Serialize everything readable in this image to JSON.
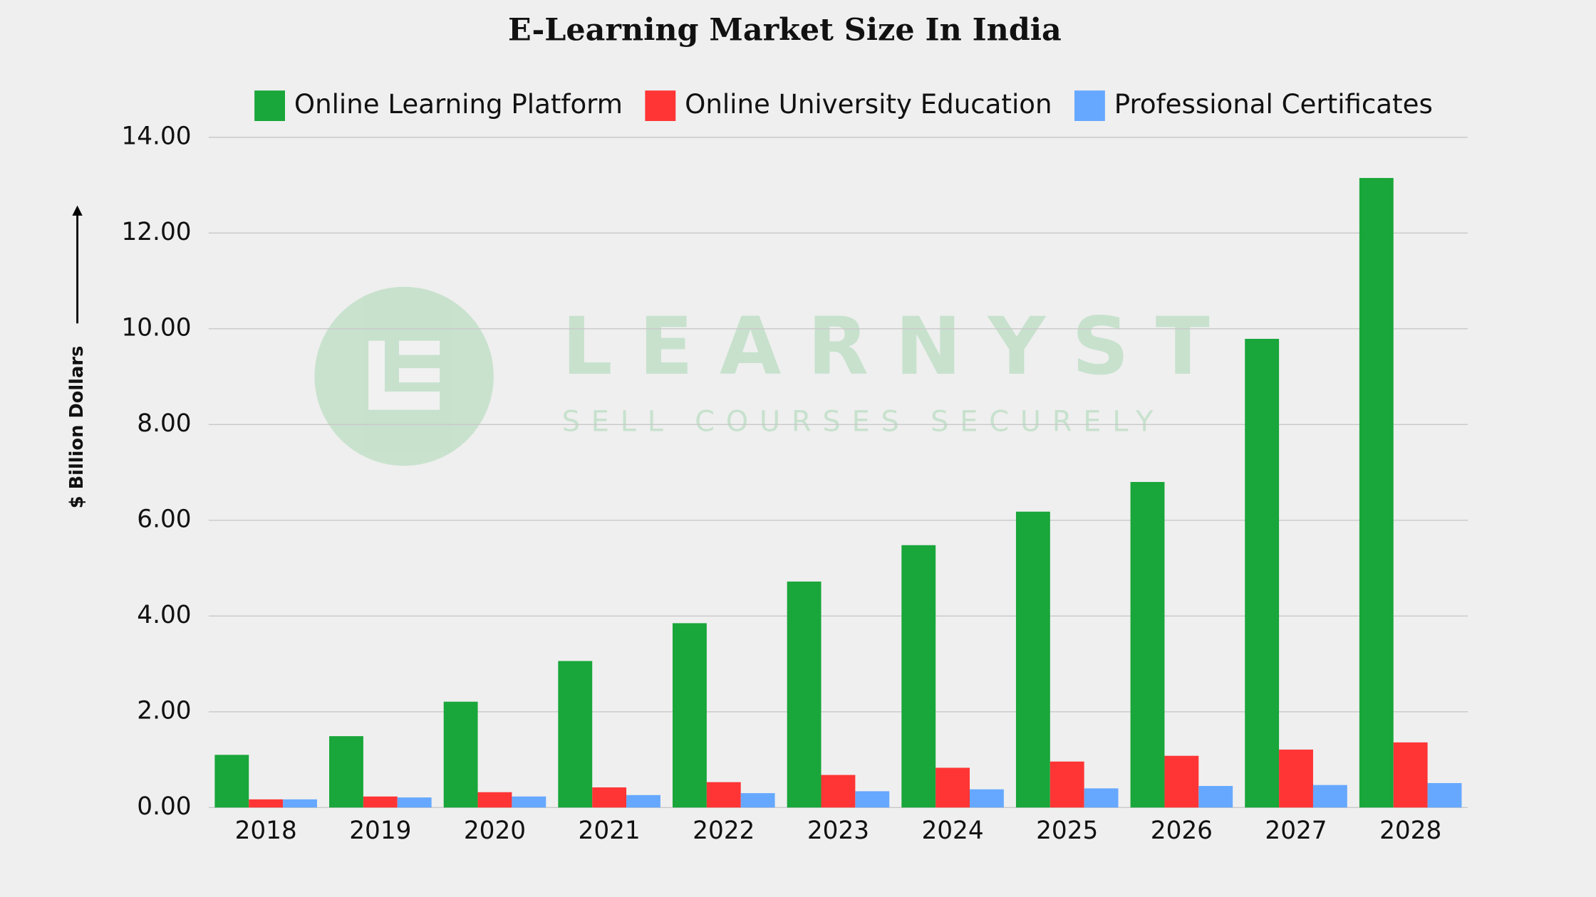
{
  "chart_data": {
    "type": "bar",
    "title": "E-Learning Market Size In India",
    "y_axis_label": "$ Billion Dollars",
    "watermark": [
      "LEARNYST",
      "SELL COURSES SECURELY"
    ],
    "categories": [
      "2018",
      "2019",
      "2020",
      "2021",
      "2022",
      "2023",
      "2024",
      "2025",
      "2026",
      "2027",
      "2028"
    ],
    "series": [
      {
        "name": "Online Learning Platform",
        "color": "#19a63a",
        "values": [
          1.1,
          1.49,
          2.21,
          3.06,
          3.85,
          4.72,
          5.48,
          6.18,
          6.8,
          9.79,
          13.15
        ]
      },
      {
        "name": "Online University Education",
        "color": "#ff3535",
        "values": [
          0.17,
          0.23,
          0.32,
          0.42,
          0.53,
          0.68,
          0.83,
          0.96,
          1.08,
          1.21,
          1.36
        ]
      },
      {
        "name": "Professional Certificates",
        "color": "#66a8ff",
        "values": [
          0.17,
          0.21,
          0.23,
          0.26,
          0.3,
          0.34,
          0.38,
          0.4,
          0.45,
          0.47,
          0.51
        ]
      }
    ],
    "ylim": [
      0,
      14
    ],
    "yticks": [
      {
        "value": 0,
        "label": "0.00"
      },
      {
        "value": 2,
        "label": "2.00"
      },
      {
        "value": 4,
        "label": "4.00"
      },
      {
        "value": 6,
        "label": "6.00"
      },
      {
        "value": 8,
        "label": "8.00"
      },
      {
        "value": 10,
        "label": "10.00"
      },
      {
        "value": 12,
        "label": "12.00"
      },
      {
        "value": 14,
        "label": "14.00"
      }
    ],
    "grid": true,
    "legend": "top"
  }
}
